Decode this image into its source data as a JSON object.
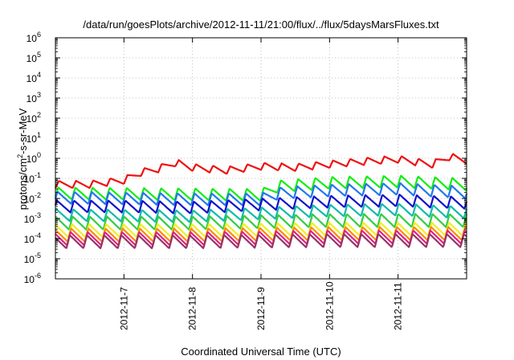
{
  "chart_data": {
    "type": "line",
    "title": "/data/run/goesPlots/archive/2012-11-11/21:00/flux/../flux/5daysMarsFluxes.txt",
    "xlabel": "Coordinated Universal Time (UTC)",
    "ylabel": "protons/cm²-s-sr-MeV",
    "ylabel_parts": {
      "pre": "protons/cm",
      "sup": "2",
      "post": "-s-sr-MeV"
    },
    "yscale": "log",
    "y_tick_exponents": [
      -6,
      -5,
      -4,
      -3,
      -2,
      -1,
      0,
      1,
      2,
      3,
      4,
      5,
      6
    ],
    "x_range": [
      "2012-11-06T00:00",
      "2012-11-12T00:00"
    ],
    "x_ticks": [
      "2012-11-7",
      "2012-11-8",
      "2012-11-9",
      "2012-11-10",
      "2012-11-11"
    ],
    "grid": true,
    "legend": "none",
    "series": [
      {
        "color": "#ee1111",
        "x": [
          "2012-11-06T00:00",
          "2012-11-06T12:00",
          "2012-11-07T00:00",
          "2012-11-07T06:00",
          "2012-11-07T12:00",
          "2012-11-07T18:00",
          "2012-11-08T00:00",
          "2012-11-08T12:00",
          "2012-11-09T00:00",
          "2012-11-09T12:00",
          "2012-11-10T00:00",
          "2012-11-10T12:00",
          "2012-11-11T00:00",
          "2012-11-11T12:00",
          "2012-11-11T18:00",
          "2012-11-12T00:00"
        ],
        "y": [
          0.05,
          0.05,
          0.08,
          0.2,
          0.3,
          0.6,
          0.35,
          0.25,
          0.4,
          0.35,
          0.5,
          0.7,
          0.9,
          0.5,
          1.2,
          0.8
        ]
      },
      {
        "color": "#11ee11",
        "x": [
          "2012-11-06T00:00",
          "2012-11-07T00:00",
          "2012-11-08T00:00",
          "2012-11-09T00:00",
          "2012-11-09T06:00",
          "2012-11-10T00:00",
          "2012-11-11T00:00",
          "2012-11-12T00:00"
        ],
        "y": [
          0.018,
          0.017,
          0.016,
          0.015,
          0.04,
          0.06,
          0.07,
          0.05
        ]
      },
      {
        "color": "#2277ee",
        "x": [
          "2012-11-06T00:00",
          "2012-11-07T00:00",
          "2012-11-08T00:00",
          "2012-11-09T00:00",
          "2012-11-09T06:00",
          "2012-11-10T00:00",
          "2012-11-11T00:00",
          "2012-11-12T00:00"
        ],
        "y": [
          0.011,
          0.01,
          0.009,
          0.009,
          0.018,
          0.025,
          0.03,
          0.02
        ]
      },
      {
        "color": "#1111cc",
        "x": [
          "2012-11-06T00:00",
          "2012-11-07T00:00",
          "2012-11-08T00:00",
          "2012-11-09T00:00",
          "2012-11-10T00:00",
          "2012-11-11T00:00",
          "2012-11-12T00:00"
        ],
        "y": [
          0.004,
          0.004,
          0.0035,
          0.005,
          0.007,
          0.008,
          0.006
        ]
      },
      {
        "color": "#11bbaa",
        "x": [
          "2012-11-06T00:00",
          "2012-11-07T00:00",
          "2012-11-08T00:00",
          "2012-11-09T00:00",
          "2012-11-10T00:00",
          "2012-11-11T00:00",
          "2012-11-12T00:00"
        ],
        "y": [
          0.0015,
          0.0014,
          0.0013,
          0.0018,
          0.0025,
          0.0028,
          0.002
        ]
      },
      {
        "color": "#33cc44",
        "x": [
          "2012-11-06T00:00",
          "2012-11-08T00:00",
          "2012-11-10T00:00",
          "2012-11-12T00:00"
        ],
        "y": [
          0.0006,
          0.0006,
          0.0008,
          0.0008
        ]
      },
      {
        "color": "#eeee22",
        "x": [
          "2012-11-06T00:00",
          "2012-11-08T00:00",
          "2012-11-10T00:00",
          "2012-11-12T00:00"
        ],
        "y": [
          0.00025,
          0.00025,
          0.0003,
          0.0003
        ]
      },
      {
        "color": "#ff8800",
        "x": [
          "2012-11-06T00:00",
          "2012-11-08T00:00",
          "2012-11-10T00:00",
          "2012-11-12T00:00"
        ],
        "y": [
          0.00015,
          0.00015,
          0.00018,
          0.00018
        ]
      },
      {
        "color": "#dd2288",
        "x": [
          "2012-11-06T00:00",
          "2012-11-08T00:00",
          "2012-11-10T00:00",
          "2012-11-12T00:00"
        ],
        "y": [
          0.0001,
          0.0001,
          0.00012,
          0.00012
        ]
      },
      {
        "color": "#993366",
        "x": [
          "2012-11-06T00:00",
          "2012-11-08T00:00",
          "2012-11-10T00:00",
          "2012-11-12T00:00"
        ],
        "y": [
          7e-05,
          7e-05,
          8e-05,
          8e-05
        ]
      }
    ]
  }
}
